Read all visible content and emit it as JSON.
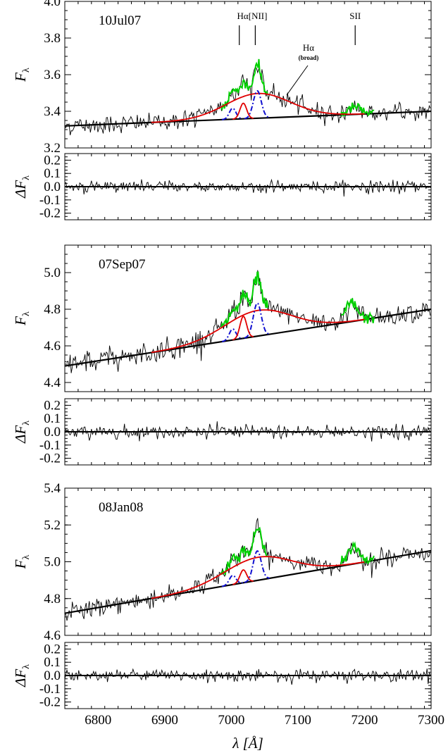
{
  "chart_data": {
    "type": "line",
    "xlabel": "λ [Å]",
    "x_ticks": [
      6800,
      6900,
      7000,
      7100,
      7200,
      7300
    ],
    "xlim": [
      6750,
      7300
    ],
    "colors": {
      "observed": "#000000",
      "continuum": "#000000",
      "narrow_halpha": "#e00000",
      "broad_halpha": "#e00000",
      "nii": "#1010d0",
      "total_model": "#00d000"
    },
    "annotations": {
      "halpha_nii": "Hα[NII]",
      "sii": "SII",
      "halpha_broad": "Hα",
      "broad_note": "(broad)"
    },
    "epochs": [
      {
        "date": "10Jul07",
        "flux_ylabel": "F_λ",
        "flux_ylim": [
          3.2,
          4.0
        ],
        "flux_ticks": [
          3.2,
          3.4,
          3.6,
          3.8,
          4.0
        ],
        "continuum": [
          [
            6750,
            3.32
          ],
          [
            7300,
            3.4
          ]
        ],
        "broad_halpha": {
          "center": 7040,
          "sigma": 48,
          "peak": 0.135
        },
        "narrow_halpha": {
          "center": 7018,
          "sigma": 5,
          "peak": 0.085
        },
        "nii_lines": [
          {
            "center": 7002,
            "sigma": 5,
            "peak": 0.06
          },
          {
            "center": 7039,
            "sigma": 6,
            "peak": 0.15
          }
        ],
        "sii": {
          "center": 7186,
          "sigma": 9,
          "peak": 0.04
        },
        "noise": 0.025,
        "residual_ylabel": "ΔF_λ",
        "residual_ylim": [
          -0.25,
          0.25
        ],
        "residual_ticks": [
          -0.2,
          -0.1,
          0.0,
          0.1,
          0.2
        ],
        "residual_noise": 0.022
      },
      {
        "date": "07Sep07",
        "flux_ylabel": "F_λ",
        "flux_ylim": [
          4.35,
          5.15
        ],
        "flux_ticks": [
          4.4,
          4.6,
          4.8,
          5.0
        ],
        "continuum": [
          [
            6750,
            4.49
          ],
          [
            7300,
            4.8
          ]
        ],
        "broad_halpha": {
          "center": 7040,
          "sigma": 50,
          "peak": 0.14
        },
        "narrow_halpha": {
          "center": 7018,
          "sigma": 5,
          "peak": 0.12
        },
        "nii_lines": [
          {
            "center": 7002,
            "sigma": 5,
            "peak": 0.06
          },
          {
            "center": 7039,
            "sigma": 6,
            "peak": 0.18
          }
        ],
        "sii": {
          "center": 7180,
          "sigma": 9,
          "peak": 0.1
        },
        "noise": 0.03,
        "residual_ylabel": "ΔF_λ",
        "residual_ylim": [
          -0.25,
          0.25
        ],
        "residual_ticks": [
          -0.2,
          -0.1,
          0.0,
          0.1,
          0.2
        ],
        "residual_noise": 0.025
      },
      {
        "date": "08Jan08",
        "flux_ylabel": "F_λ",
        "flux_ylim": [
          4.6,
          5.4
        ],
        "flux_ticks": [
          4.6,
          4.8,
          5.0,
          5.2,
          5.4
        ],
        "continuum": [
          [
            6750,
            4.72
          ],
          [
            7300,
            5.06
          ]
        ],
        "broad_halpha": {
          "center": 7040,
          "sigma": 50,
          "peak": 0.125
        },
        "narrow_halpha": {
          "center": 7018,
          "sigma": 5,
          "peak": 0.07
        },
        "nii_lines": [
          {
            "center": 7002,
            "sigma": 5,
            "peak": 0.05
          },
          {
            "center": 7039,
            "sigma": 6,
            "peak": 0.16
          }
        ],
        "sii": {
          "center": 7183,
          "sigma": 9,
          "peak": 0.09
        },
        "noise": 0.025,
        "residual_ylabel": "ΔF_λ",
        "residual_ylim": [
          -0.25,
          0.25
        ],
        "residual_ticks": [
          -0.2,
          -0.1,
          0.0,
          0.1,
          0.2
        ],
        "residual_noise": 0.022
      }
    ]
  }
}
